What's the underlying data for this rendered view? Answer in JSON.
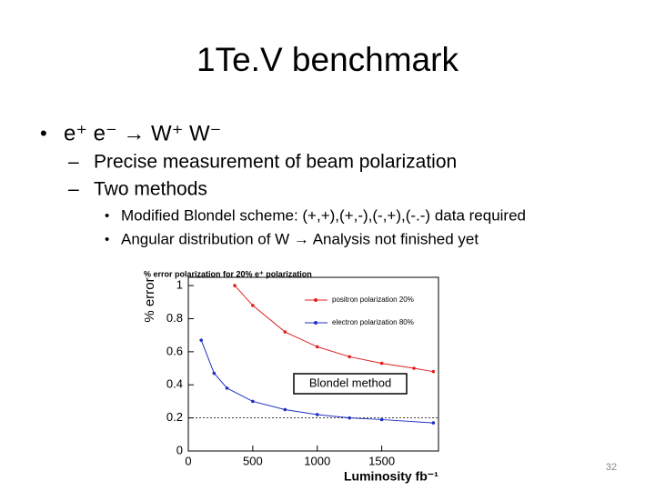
{
  "slide": {
    "title": "1Te.V benchmark",
    "bullets": [
      "e⁺ e⁻ → W⁺ W⁻"
    ],
    "sub_bullets": [
      "Precise measurement of beam polarization",
      "Two methods"
    ],
    "sub_sub_bullets": [
      "Modified Blondel scheme: (+,+),(+,-),(-,+),(-.-) data required",
      "Angular distribution of W → Analysis not finished yet"
    ],
    "page_number": "32"
  },
  "chart_data": {
    "type": "line",
    "title": "% error polarization for 20% e⁺ polarization",
    "x_label": "Luminosity fb⁻¹",
    "y_label": "% error",
    "series": [
      {
        "name": "positron polarization 20%",
        "color": "#e02020",
        "x": [
          360,
          500,
          750,
          1000,
          1250,
          1500,
          1750,
          1900
        ],
        "values": [
          1.0,
          0.88,
          0.72,
          0.63,
          0.57,
          0.53,
          0.5,
          0.48
        ]
      },
      {
        "name": "electron polarization 80%",
        "color": "#2030c0",
        "x": [
          100,
          200,
          300,
          500,
          750,
          1000,
          1250,
          1500,
          1900
        ],
        "values": [
          0.67,
          0.47,
          0.38,
          0.3,
          0.25,
          0.22,
          0.2,
          0.19,
          0.17
        ]
      }
    ],
    "reference_line": 0.2,
    "annotation": "Blondel method",
    "xlim": [
      0,
      1940
    ],
    "ylim": [
      0,
      1.05
    ],
    "xticks": [
      0,
      500,
      1000,
      1500
    ],
    "yticks": [
      0,
      0.2,
      0.4,
      0.6,
      0.8,
      1
    ]
  }
}
